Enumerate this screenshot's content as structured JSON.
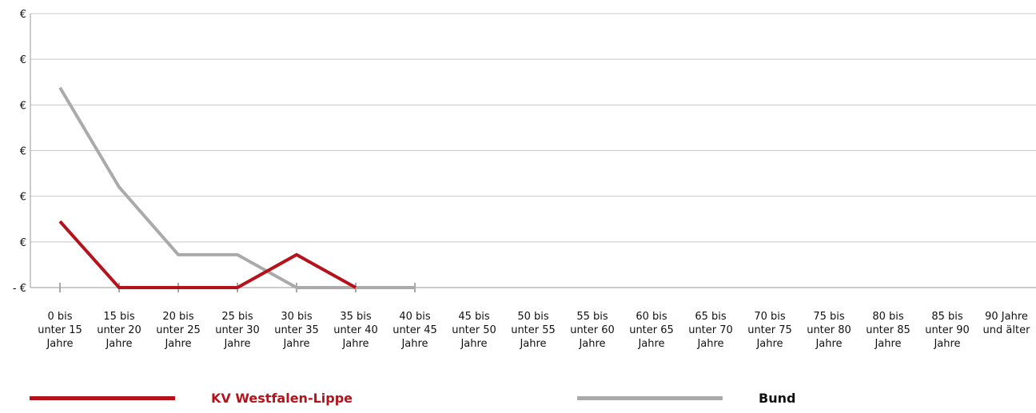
{
  "chart_data": {
    "type": "line",
    "categories": [
      [
        "0 bis",
        "unter 15",
        "Jahre"
      ],
      [
        "15 bis",
        "unter 20",
        "Jahre"
      ],
      [
        "20 bis",
        "unter 25",
        "Jahre"
      ],
      [
        "25 bis",
        "unter 30",
        "Jahre"
      ],
      [
        "30 bis",
        "unter 35",
        "Jahre"
      ],
      [
        "35 bis",
        "unter 40",
        "Jahre"
      ],
      [
        "40 bis",
        "unter 45",
        "Jahre"
      ],
      [
        "45 bis",
        "unter 50",
        "Jahre"
      ],
      [
        "50 bis",
        "unter 55",
        "Jahre"
      ],
      [
        "55 bis",
        "unter 60",
        "Jahre"
      ],
      [
        "60 bis",
        "unter 65",
        "Jahre"
      ],
      [
        "65 bis",
        "unter 70",
        "Jahre"
      ],
      [
        "70 bis",
        "unter 75",
        "Jahre"
      ],
      [
        "75 bis",
        "unter 80",
        "Jahre"
      ],
      [
        "80 bis",
        "unter 85",
        "Jahre"
      ],
      [
        "85 bis",
        "unter 90",
        "Jahre"
      ],
      [
        "90 Jahre",
        "und älter"
      ]
    ],
    "y_tick_labels": [
      "- €",
      "€",
      "€",
      "€",
      "€",
      "€",
      "€"
    ],
    "ylim": [
      0,
      6
    ],
    "series": [
      {
        "name": "KV Westfalen-Lippe",
        "color": "#b5121b",
        "values": [
          1.45,
          0,
          0,
          0,
          0.72,
          0,
          null,
          null,
          null,
          null,
          null,
          null,
          null,
          null,
          null,
          null,
          null
        ]
      },
      {
        "name": "Bund",
        "color": "#aaaaaa",
        "values": [
          4.38,
          2.2,
          0.72,
          0.72,
          0,
          0,
          0,
          null,
          null,
          null,
          null,
          null,
          null,
          null,
          null,
          null,
          null
        ]
      }
    ],
    "grid": true,
    "legend_position": "bottom"
  }
}
